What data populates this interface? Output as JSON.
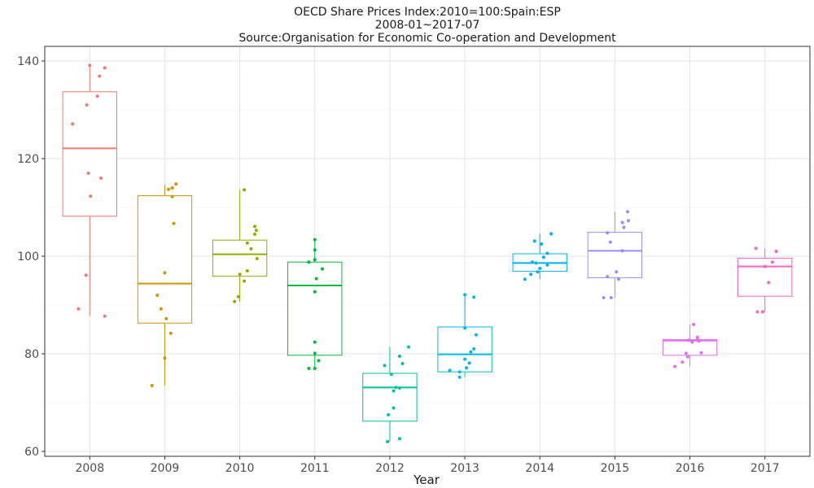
{
  "chart_data": {
    "type": "box",
    "title": [
      "OECD Share Prices Index:2010=100:Spain:ESP",
      "2008-01~2017-07",
      "Source:Organisation for Economic Co-operation and Development"
    ],
    "xlabel": "Year",
    "ylabel": "",
    "ylim": [
      59,
      143
    ],
    "yticks": [
      60,
      80,
      100,
      120,
      140
    ],
    "grid": true,
    "legend": "none",
    "categories": [
      "2008",
      "2009",
      "2010",
      "2011",
      "2012",
      "2013",
      "2014",
      "2015",
      "2016",
      "2017"
    ],
    "colors": [
      "#F8766D",
      "#D39200",
      "#93AA00",
      "#00BA38",
      "#00C19F",
      "#00B9E3",
      "#00B0F6",
      "#9590FF",
      "#E76BF3",
      "#FF62BC"
    ],
    "boxes": [
      {
        "min": 87.7,
        "q1": 108.2,
        "median": 122.1,
        "q3": 133.7,
        "max": 139.1
      },
      {
        "min": 73.5,
        "q1": 86.3,
        "median": 94.4,
        "q3": 112.4,
        "max": 114.6
      },
      {
        "min": 90.7,
        "q1": 95.9,
        "median": 100.4,
        "q3": 103.3,
        "max": 113.6
      },
      {
        "min": 77.0,
        "q1": 79.7,
        "median": 94.0,
        "q3": 98.8,
        "max": 103.4
      },
      {
        "min": 62.0,
        "q1": 66.2,
        "median": 73.1,
        "q3": 76.0,
        "max": 81.4
      },
      {
        "min": 75.2,
        "q1": 76.3,
        "median": 79.9,
        "q3": 85.5,
        "max": 92.1
      },
      {
        "min": 95.3,
        "q1": 96.9,
        "median": 98.6,
        "q3": 100.5,
        "max": 104.6
      },
      {
        "min": 91.5,
        "q1": 95.6,
        "median": 101.1,
        "q3": 104.9,
        "max": 109.1
      },
      {
        "min": 77.4,
        "q1": 79.7,
        "median": 82.7,
        "q3": 82.9,
        "max": 86.0
      },
      {
        "min": 88.6,
        "q1": 91.8,
        "median": 97.9,
        "q3": 99.6,
        "max": 101.6
      }
    ],
    "points": [
      [
        [
          0.85,
          89.2
        ],
        [
          1.0,
          139.1
        ],
        [
          1.2,
          138.6
        ],
        [
          1.13,
          136.9
        ],
        [
          1.1,
          132.8
        ],
        [
          0.96,
          131.0
        ],
        [
          0.77,
          127.1
        ],
        [
          0.98,
          117.0
        ],
        [
          1.15,
          116.0
        ],
        [
          1.01,
          112.3
        ],
        [
          0.95,
          96.1
        ],
        [
          1.2,
          87.7
        ]
      ],
      [
        [
          1.9,
          92.0
        ],
        [
          1.83,
          73.5
        ],
        [
          2.0,
          79.1
        ],
        [
          2.02,
          87.2
        ],
        [
          2.0,
          96.6
        ],
        [
          2.1,
          114.0
        ],
        [
          2.05,
          113.7
        ],
        [
          2.15,
          114.8
        ],
        [
          2.1,
          112.2
        ],
        [
          2.12,
          106.7
        ],
        [
          2.08,
          84.2
        ],
        [
          1.95,
          89.2
        ]
      ],
      [
        [
          2.93,
          90.7
        ],
        [
          2.98,
          91.7
        ],
        [
          3.06,
          94.9
        ],
        [
          3.0,
          96.3
        ],
        [
          3.1,
          97.0
        ],
        [
          3.23,
          99.5
        ],
        [
          3.15,
          101.5
        ],
        [
          3.1,
          102.7
        ],
        [
          3.2,
          104.5
        ],
        [
          3.22,
          105.3
        ],
        [
          3.2,
          106.1
        ],
        [
          3.06,
          113.6
        ]
      ],
      [
        [
          3.92,
          77.0
        ],
        [
          4.0,
          77.0
        ],
        [
          4.0,
          80.1
        ],
        [
          4.05,
          78.6
        ],
        [
          4.0,
          82.4
        ],
        [
          4.0,
          92.7
        ],
        [
          4.02,
          95.4
        ],
        [
          4.1,
          97.4
        ],
        [
          3.92,
          98.8
        ],
        [
          4.0,
          99.3
        ],
        [
          4.0,
          101.3
        ],
        [
          4.0,
          103.4
        ]
      ],
      [
        [
          4.97,
          62.0
        ],
        [
          5.13,
          62.6
        ],
        [
          4.98,
          67.5
        ],
        [
          5.05,
          68.9
        ],
        [
          5.08,
          73.1
        ],
        [
          5.05,
          72.4
        ],
        [
          5.13,
          73.0
        ],
        [
          5.17,
          78.0
        ],
        [
          4.93,
          77.6
        ],
        [
          5.13,
          79.5
        ],
        [
          5.02,
          75.8
        ],
        [
          5.25,
          81.4
        ]
      ],
      [
        [
          5.8,
          76.6
        ],
        [
          5.93,
          75.2
        ],
        [
          6.02,
          77.1
        ],
        [
          6.06,
          78.1
        ],
        [
          6.0,
          78.9
        ],
        [
          6.08,
          80.4
        ],
        [
          6.12,
          81.0
        ],
        [
          6.15,
          83.9
        ],
        [
          6.0,
          85.3
        ],
        [
          6.12,
          91.6
        ],
        [
          6.0,
          92.1
        ],
        [
          5.93,
          76.3
        ]
      ],
      [
        [
          6.8,
          95.3
        ],
        [
          6.88,
          96.3
        ],
        [
          6.97,
          96.8
        ],
        [
          7.0,
          97.5
        ],
        [
          7.1,
          98.2
        ],
        [
          6.9,
          98.8
        ],
        [
          6.95,
          98.6
        ],
        [
          7.05,
          99.8
        ],
        [
          7.1,
          100.6
        ],
        [
          6.93,
          103.1
        ],
        [
          7.15,
          104.6
        ],
        [
          7.02,
          102.5
        ]
      ],
      [
        [
          7.85,
          91.5
        ],
        [
          7.95,
          91.5
        ],
        [
          8.05,
          95.3
        ],
        [
          7.9,
          95.8
        ],
        [
          8.02,
          96.8
        ],
        [
          8.1,
          101.1
        ],
        [
          7.94,
          102.9
        ],
        [
          7.9,
          104.8
        ],
        [
          8.1,
          106.9
        ],
        [
          8.18,
          107.3
        ],
        [
          8.17,
          109.1
        ],
        [
          8.12,
          105.9
        ]
      ],
      [
        [
          8.8,
          77.4
        ],
        [
          8.9,
          78.3
        ],
        [
          8.97,
          79.4
        ],
        [
          8.95,
          80.1
        ],
        [
          9.15,
          80.2
        ],
        [
          9.03,
          82.4
        ],
        [
          9.1,
          83.0
        ],
        [
          8.98,
          82.8
        ],
        [
          9.1,
          83.4
        ],
        [
          9.05,
          86.0
        ],
        [
          9.12,
          82.6
        ]
      ],
      [
        [
          9.9,
          88.6
        ],
        [
          9.97,
          88.6
        ],
        [
          10.05,
          94.6
        ],
        [
          10.0,
          97.9
        ],
        [
          10.1,
          98.8
        ],
        [
          10.15,
          101.0
        ],
        [
          9.88,
          101.6
        ]
      ]
    ]
  }
}
